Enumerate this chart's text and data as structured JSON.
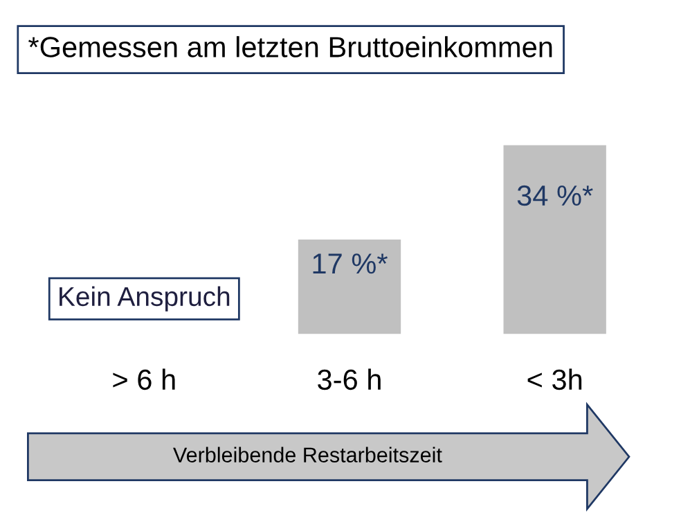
{
  "chart_data": {
    "type": "bar",
    "title": "*Gemessen am letzten Bruttoeinkommen",
    "categories": [
      "> 6 h",
      "3-6 h",
      "< 3h"
    ],
    "values": [
      0,
      17,
      34
    ],
    "value_labels": [
      "Kein Anspruch",
      "17 %*",
      "34 %*"
    ],
    "color": "#c0c0c0",
    "xlabel": "Verbleibende Restarbeitszeit",
    "grid": false,
    "legend": false
  }
}
